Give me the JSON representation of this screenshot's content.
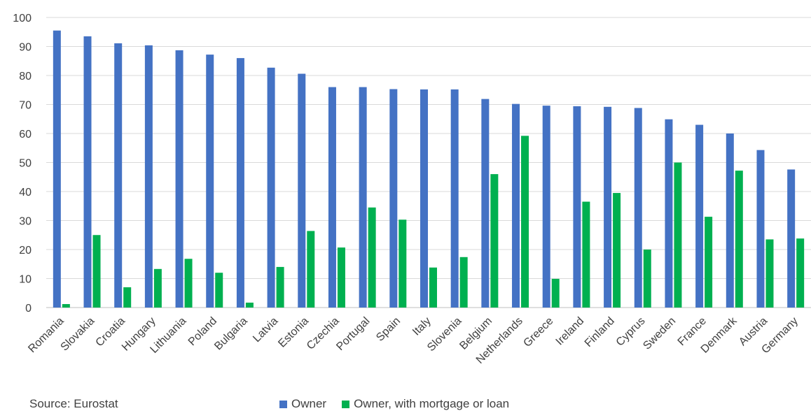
{
  "chart_data": {
    "type": "bar",
    "categories": [
      "Romania",
      "Slovakia",
      "Croatia",
      "Hungary",
      "Lithuania",
      "Poland",
      "Bulgaria",
      "Latvia",
      "Estonia",
      "Czechia",
      "Portugal",
      "Spain",
      "Italy",
      "Slovenia",
      "Belgium",
      "Netherlands",
      "Greece",
      "Ireland",
      "Finland",
      "Cyprus",
      "Sweden",
      "France",
      "Denmark",
      "Austria",
      "Germany"
    ],
    "series": [
      {
        "name": "Owner",
        "color": "#4472C4",
        "values": [
          95.5,
          93.5,
          91.1,
          90.4,
          88.7,
          87.2,
          86.0,
          82.7,
          80.6,
          76.0,
          76.0,
          75.3,
          75.2,
          75.2,
          71.9,
          70.2,
          69.6,
          69.4,
          69.2,
          68.8,
          64.9,
          63.0,
          60.0,
          54.3,
          47.6
        ]
      },
      {
        "name": "Owner, with mortgage or loan",
        "color": "#00B050",
        "values": [
          1.2,
          25.0,
          7.0,
          13.3,
          16.8,
          12.0,
          1.7,
          14.0,
          26.4,
          20.7,
          34.5,
          30.3,
          13.8,
          17.4,
          46.0,
          59.2,
          9.9,
          36.5,
          39.5,
          20.0,
          50.0,
          31.3,
          47.2,
          23.5,
          23.8
        ]
      }
    ],
    "yticks": [
      0,
      10,
      20,
      30,
      40,
      50,
      60,
      70,
      80,
      90,
      100
    ],
    "ylim": [
      0,
      100
    ],
    "grid": true,
    "title": "",
    "xlabel": "",
    "ylabel": "",
    "legend_position": "bottom"
  },
  "footer": {
    "source": "Source: Eurostat"
  }
}
